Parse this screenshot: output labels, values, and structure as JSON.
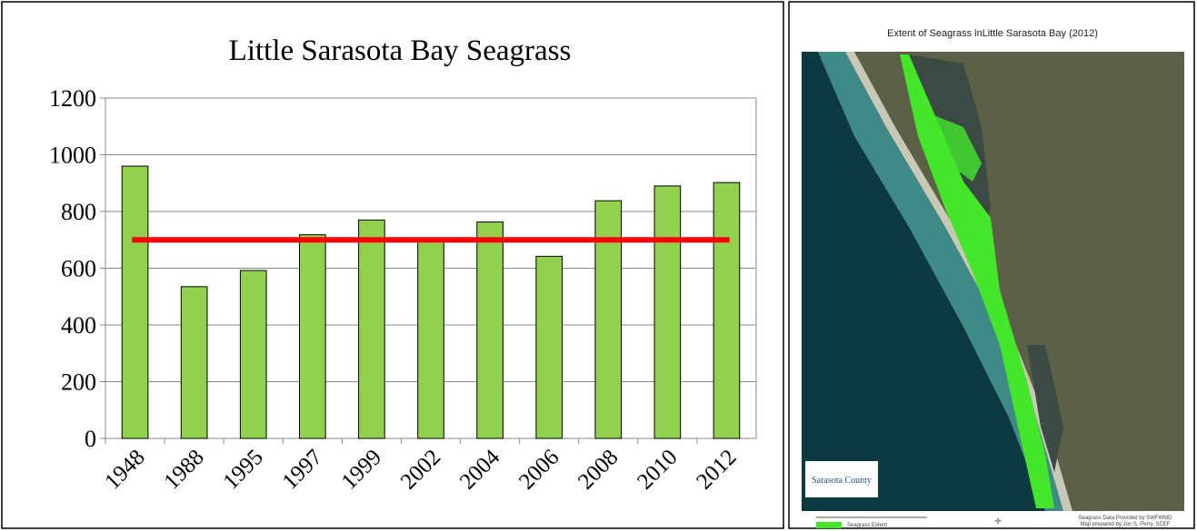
{
  "chart_data": {
    "type": "bar",
    "title": "Little Sarasota Bay Seagrass",
    "categories": [
      "1948",
      "1988",
      "1995",
      "1997",
      "1999",
      "2002",
      "2004",
      "2006",
      "2008",
      "2010",
      "2012"
    ],
    "values": [
      960,
      535,
      592,
      718,
      770,
      695,
      763,
      642,
      838,
      890,
      902
    ],
    "color": "#92d050",
    "ylim": [
      0,
      1200
    ],
    "yticks": [
      0,
      200,
      400,
      600,
      800,
      1000,
      1200
    ],
    "grid": true,
    "reference_line": {
      "value": 700,
      "color": "#ff0000"
    }
  },
  "map_panel": {
    "title": "Extent of Seagrass inLittle Sarasota Bay (2012)",
    "logo": "Sarasota County",
    "legend": "Seagrass Extent",
    "credit": [
      "Seagrass Data Provided by SWFWMD",
      "Map prepared by Jon S. Perry, SCEF"
    ]
  }
}
